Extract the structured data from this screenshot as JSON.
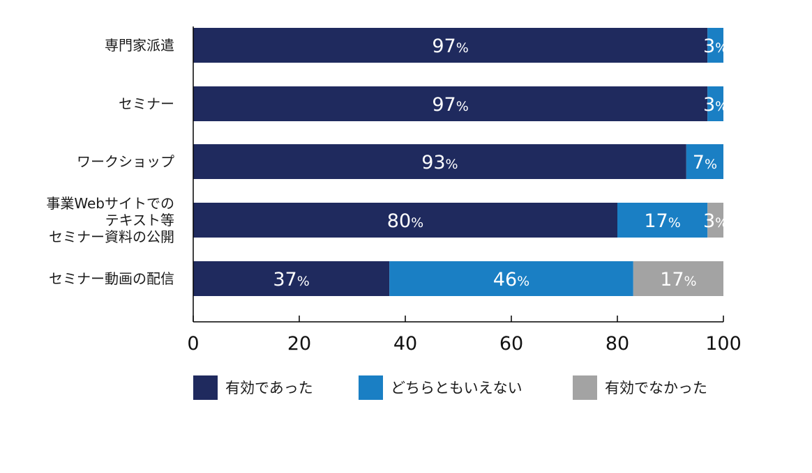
{
  "chart_data": {
    "type": "bar",
    "orientation": "horizontal",
    "stacked": true,
    "categories": [
      [
        "専門家派遣"
      ],
      [
        "セミナー"
      ],
      [
        "ワークショップ"
      ],
      [
        "事業Webサイトでの",
        "テキスト等",
        "セミナー資料の公開"
      ],
      [
        "セミナー動画の配信"
      ]
    ],
    "series": [
      {
        "name": "有効であった",
        "color": "#1f2a5e",
        "values": [
          97,
          97,
          93,
          80,
          37
        ]
      },
      {
        "name": "どちらともいえない",
        "color": "#1a7fc4",
        "values": [
          3,
          3,
          7,
          17,
          46
        ]
      },
      {
        "name": "有効でなかった",
        "color": "#a3a3a3",
        "values": [
          0,
          0,
          0,
          3,
          17
        ]
      }
    ],
    "data_labels": [
      [
        "97",
        "3",
        ""
      ],
      [
        "97",
        "3",
        ""
      ],
      [
        "93",
        "7",
        ""
      ],
      [
        "80",
        "17",
        "3"
      ],
      [
        "37",
        "46",
        "17"
      ]
    ],
    "label_suffix": "%",
    "xlim": [
      0,
      100
    ],
    "xticks": [
      "0",
      "20",
      "40",
      "60",
      "80",
      "100"
    ],
    "legend_position": "bottom",
    "grid": false,
    "title": "",
    "xlabel": "",
    "ylabel": ""
  }
}
